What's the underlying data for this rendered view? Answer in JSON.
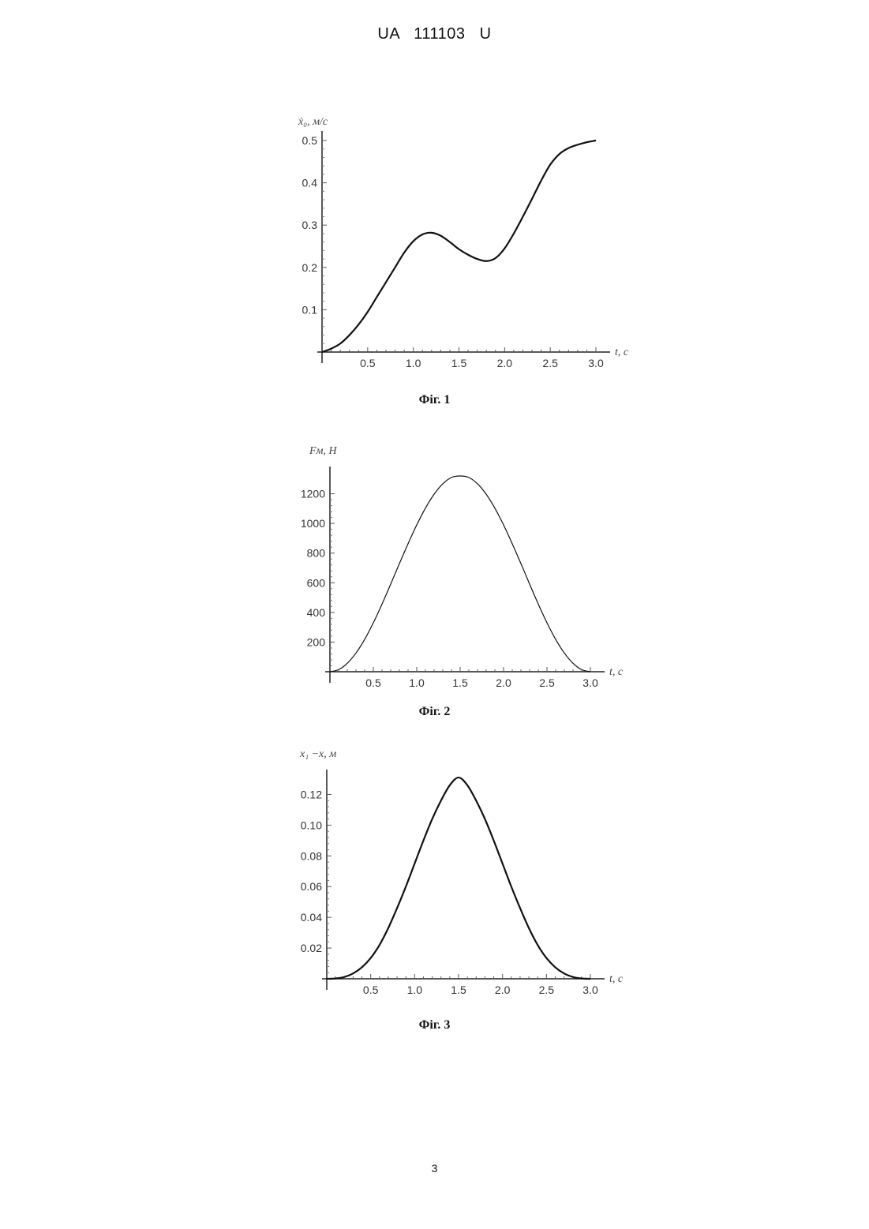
{
  "header": "UA   111103   U",
  "page_number": "3",
  "chart_data": [
    {
      "type": "line",
      "caption": "Фіг. 1",
      "title": "",
      "ylabel": "ẋ₀, м/с",
      "xlabel": "t, с",
      "xlim": [
        0,
        3.0
      ],
      "ylim": [
        0,
        0.5
      ],
      "x_ticks": [
        "0.5",
        "1.0",
        "1.5",
        "2.0",
        "2.5",
        "3.0"
      ],
      "y_ticks": [
        "0.1",
        "0.2",
        "0.3",
        "0.4",
        "0.5"
      ],
      "grid": false,
      "series": [
        {
          "x": [
            0,
            0.1,
            0.2,
            0.3,
            0.4,
            0.5,
            0.6,
            0.7,
            0.8,
            0.9,
            1.0,
            1.1,
            1.2,
            1.3,
            1.4,
            1.5,
            1.6,
            1.7,
            1.8,
            1.9,
            2.0,
            2.1,
            2.2,
            2.3,
            2.4,
            2.5,
            2.6,
            2.7,
            2.8,
            2.9,
            3.0
          ],
          "y": [
            0,
            0.008,
            0.02,
            0.04,
            0.065,
            0.095,
            0.13,
            0.165,
            0.2,
            0.235,
            0.262,
            0.278,
            0.282,
            0.275,
            0.26,
            0.243,
            0.23,
            0.22,
            0.215,
            0.222,
            0.245,
            0.28,
            0.32,
            0.362,
            0.405,
            0.443,
            0.468,
            0.482,
            0.49,
            0.496,
            0.5
          ]
        }
      ]
    },
    {
      "type": "line",
      "caption": "Фіг. 2",
      "title": "",
      "ylabel": "Fм, Н",
      "xlabel": "t, с",
      "xlim": [
        0,
        3.0
      ],
      "ylim": [
        0,
        1320
      ],
      "x_ticks": [
        "0.5",
        "1.0",
        "1.5",
        "2.0",
        "2.5",
        "3.0"
      ],
      "y_ticks": [
        "200",
        "400",
        "600",
        "800",
        "1000",
        "1200"
      ],
      "grid": false,
      "series": [
        {
          "x": [
            0,
            0.1,
            0.2,
            0.3,
            0.4,
            0.5,
            0.6,
            0.7,
            0.8,
            0.9,
            1.0,
            1.1,
            1.2,
            1.3,
            1.4,
            1.5,
            1.6,
            1.7,
            1.8,
            1.9,
            2.0,
            2.1,
            2.2,
            2.3,
            2.4,
            2.5,
            2.6,
            2.7,
            2.8,
            2.9,
            3.0
          ],
          "y": [
            0,
            14,
            57,
            126,
            218,
            330,
            456,
            591,
            729,
            863,
            990,
            1103,
            1197,
            1267,
            1310,
            1320,
            1310,
            1267,
            1197,
            1103,
            990,
            863,
            729,
            591,
            456,
            330,
            218,
            126,
            57,
            14,
            0
          ]
        }
      ]
    },
    {
      "type": "line",
      "caption": "Фіг. 3",
      "title": "",
      "ylabel": "x₁ −x, м",
      "xlabel": "t, с",
      "xlim": [
        0,
        3.0
      ],
      "ylim": [
        0,
        0.13
      ],
      "x_ticks": [
        "0.5",
        "1.0",
        "1.5",
        "2.0",
        "2.5",
        "3.0"
      ],
      "y_ticks": [
        "0.02",
        "0.04",
        "0.06",
        "0.08",
        "0.10",
        "0.12"
      ],
      "grid": false,
      "series": [
        {
          "x": [
            0,
            0.1,
            0.2,
            0.3,
            0.4,
            0.5,
            0.6,
            0.7,
            0.8,
            0.9,
            1.0,
            1.1,
            1.2,
            1.3,
            1.4,
            1.5,
            1.6,
            1.7,
            1.8,
            1.9,
            2.0,
            2.1,
            2.2,
            2.3,
            2.4,
            2.5,
            2.6,
            2.7,
            2.8,
            2.9,
            3.0
          ],
          "y": [
            0,
            0.0002,
            0.0012,
            0.0035,
            0.0075,
            0.0135,
            0.022,
            0.033,
            0.046,
            0.06,
            0.075,
            0.09,
            0.104,
            0.116,
            0.126,
            0.131,
            0.126,
            0.116,
            0.104,
            0.09,
            0.075,
            0.06,
            0.046,
            0.033,
            0.022,
            0.0135,
            0.0075,
            0.0035,
            0.0012,
            0.0002,
            0
          ]
        }
      ]
    }
  ]
}
